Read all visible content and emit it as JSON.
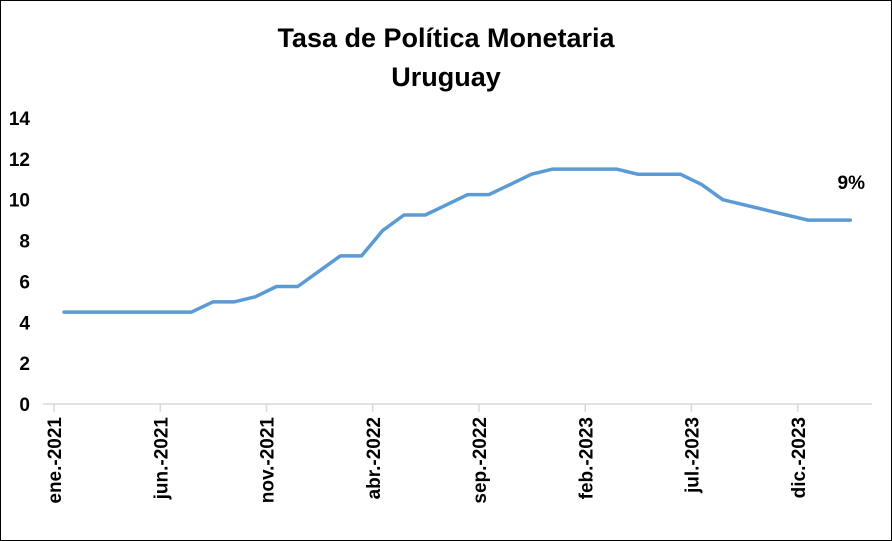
{
  "chart_data": {
    "type": "line",
    "title": "Tasa de Política Monetaria",
    "subtitle": "Uruguay",
    "xlabel": "",
    "ylabel": "",
    "ylim": [
      0,
      14
    ],
    "yticks": [
      0,
      2,
      4,
      6,
      8,
      10,
      12,
      14
    ],
    "grid": false,
    "legend": "none",
    "x_tick_labels": [
      "ene.-2021",
      "jun.-2021",
      "nov.-2021",
      "abr.-2022",
      "sep.-2022",
      "feb.-2023",
      "jul.-2023",
      "dic.-2023"
    ],
    "x": [
      "ene.-2021",
      "feb.-2021",
      "mar.-2021",
      "abr.-2021",
      "may.-2021",
      "jun.-2021",
      "jul.-2021",
      "ago.-2021",
      "sep.-2021",
      "oct.-2021",
      "nov.-2021",
      "dic.-2021",
      "ene.-2022",
      "feb.-2022",
      "mar.-2022",
      "abr.-2022",
      "may.-2022",
      "jun.-2022",
      "jul.-2022",
      "ago.-2022",
      "sep.-2022",
      "oct.-2022",
      "nov.-2022",
      "dic.-2022",
      "ene.-2023",
      "feb.-2023",
      "mar.-2023",
      "abr.-2023",
      "may.-2023",
      "jun.-2023",
      "jul.-2023",
      "ago.-2023",
      "sep.-2023",
      "oct.-2023",
      "nov.-2023",
      "dic.-2023",
      "ene.-2024",
      "feb.-2024"
    ],
    "series": [
      {
        "color": "#5B9BD5",
        "values": [
          4.5,
          4.5,
          4.5,
          4.5,
          4.5,
          4.5,
          4.5,
          5.0,
          5.0,
          5.25,
          5.75,
          5.75,
          6.5,
          7.25,
          7.25,
          8.5,
          9.25,
          9.25,
          9.75,
          10.25,
          10.25,
          10.75,
          11.25,
          11.5,
          11.5,
          11.5,
          11.5,
          11.25,
          11.25,
          11.25,
          10.75,
          10.0,
          9.75,
          9.5,
          9.25,
          9.0,
          9.0,
          9.0
        ]
      }
    ],
    "annotations": [
      {
        "text": "9%",
        "x": "feb.-2024",
        "y": 9.0
      }
    ]
  }
}
